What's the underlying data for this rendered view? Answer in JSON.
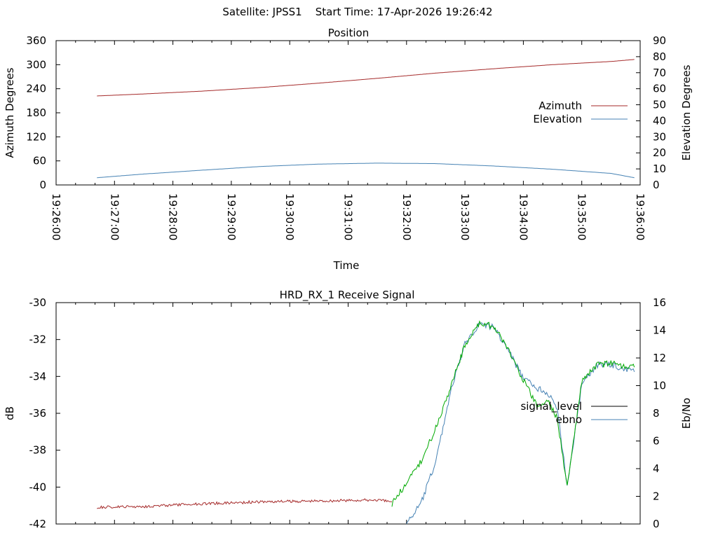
{
  "page_title": "Satellite: JPSS1    Start Time: 17-Apr-2026 19:26:42",
  "chart_data": [
    {
      "type": "line",
      "title": "Position",
      "xlabel": "Time",
      "ylabel": "Azimuth Degrees",
      "y2label": "Elevation Degrees",
      "xlim": [
        "19:26:00",
        "19:36:00"
      ],
      "xticks": [
        "19:26:00",
        "19:27:00",
        "19:28:00",
        "19:29:00",
        "19:30:00",
        "19:31:00",
        "19:32:00",
        "19:33:00",
        "19:34:00",
        "19:35:00",
        "19:36:00"
      ],
      "ylim": [
        0,
        360
      ],
      "yticks": [
        0,
        60,
        120,
        180,
        240,
        300,
        360
      ],
      "y2lim": [
        0,
        90
      ],
      "y2ticks": [
        0,
        10,
        20,
        30,
        40,
        50,
        60,
        70,
        80,
        90
      ],
      "legend_position": "right",
      "series": [
        {
          "name": "Azimuth",
          "axis": "y",
          "color": "#a52a2a",
          "x": [
            "19:26:42",
            "19:27:30",
            "19:28:30",
            "19:29:30",
            "19:30:30",
            "19:31:30",
            "19:32:30",
            "19:33:30",
            "19:34:30",
            "19:35:30",
            "19:35:54"
          ],
          "values": [
            222,
            227,
            234,
            243,
            254,
            266,
            279,
            290,
            300,
            308,
            313
          ]
        },
        {
          "name": "Elevation",
          "axis": "y2",
          "color": "#4682b4",
          "x": [
            "19:26:42",
            "19:27:30",
            "19:28:30",
            "19:29:30",
            "19:30:30",
            "19:31:30",
            "19:32:30",
            "19:33:30",
            "19:34:30",
            "19:35:30",
            "19:35:54"
          ],
          "values": [
            4.5,
            6.8,
            9.2,
            11.5,
            13,
            13.6,
            13.3,
            11.8,
            9.8,
            7.2,
            4.5
          ]
        }
      ]
    },
    {
      "type": "line",
      "title": "HRD_RX_1 Receive Signal",
      "ylabel": "dB",
      "y2label": "Eb/No",
      "xlim": [
        "19:26:00",
        "19:36:00"
      ],
      "ylim": [
        -42,
        -30
      ],
      "yticks": [
        -42,
        -40,
        -38,
        -36,
        -34,
        -32,
        -30
      ],
      "y2lim": [
        0,
        16
      ],
      "y2ticks": [
        0,
        2,
        4,
        6,
        8,
        10,
        12,
        14,
        16
      ],
      "legend_position": "right",
      "series": [
        {
          "name": "signal_level",
          "axis": "y",
          "color": "#000000",
          "x": [],
          "values": []
        },
        {
          "name": "ebno",
          "axis": "y2",
          "color": "#4682b4",
          "x": [
            "19:32:00",
            "19:32:15",
            "19:32:30",
            "19:32:45",
            "19:33:00",
            "19:33:15",
            "19:33:30",
            "19:33:45",
            "19:34:00",
            "19:34:15",
            "19:34:25",
            "19:34:35",
            "19:34:45",
            "19:35:00",
            "19:35:15",
            "19:35:30",
            "19:35:54"
          ],
          "values": [
            0,
            1.5,
            4.5,
            9.5,
            13,
            14.5,
            14.2,
            12.5,
            10.5,
            9.8,
            9.5,
            8.2,
            2.8,
            10,
            11.5,
            11.5,
            11
          ]
        },
        {
          "name": "",
          "axis": "y",
          "color": "#a52a2a",
          "x": [
            "19:26:42",
            "19:27:30",
            "19:28:30",
            "19:29:30",
            "19:30:30",
            "19:31:30",
            "19:31:45"
          ],
          "values": [
            -41.1,
            -41.05,
            -40.9,
            -40.8,
            -40.75,
            -40.7,
            -40.8
          ]
        },
        {
          "name": "",
          "axis": "y",
          "color": "#00aa00",
          "x": [
            "19:31:45",
            "19:32:00",
            "19:32:15",
            "19:32:30",
            "19:32:45",
            "19:33:00",
            "19:33:15",
            "19:33:30",
            "19:33:45",
            "19:34:00",
            "19:34:15",
            "19:34:25",
            "19:34:35",
            "19:34:45",
            "19:35:00",
            "19:35:15",
            "19:35:30",
            "19:35:54"
          ],
          "values": [
            -40.9,
            -39.8,
            -38.6,
            -36.8,
            -34.6,
            -32.3,
            -31.1,
            -31.3,
            -32.6,
            -34.2,
            -35.7,
            -35.3,
            -36.3,
            -40.0,
            -34.3,
            -33.4,
            -33.3,
            -33.5
          ]
        }
      ]
    }
  ]
}
